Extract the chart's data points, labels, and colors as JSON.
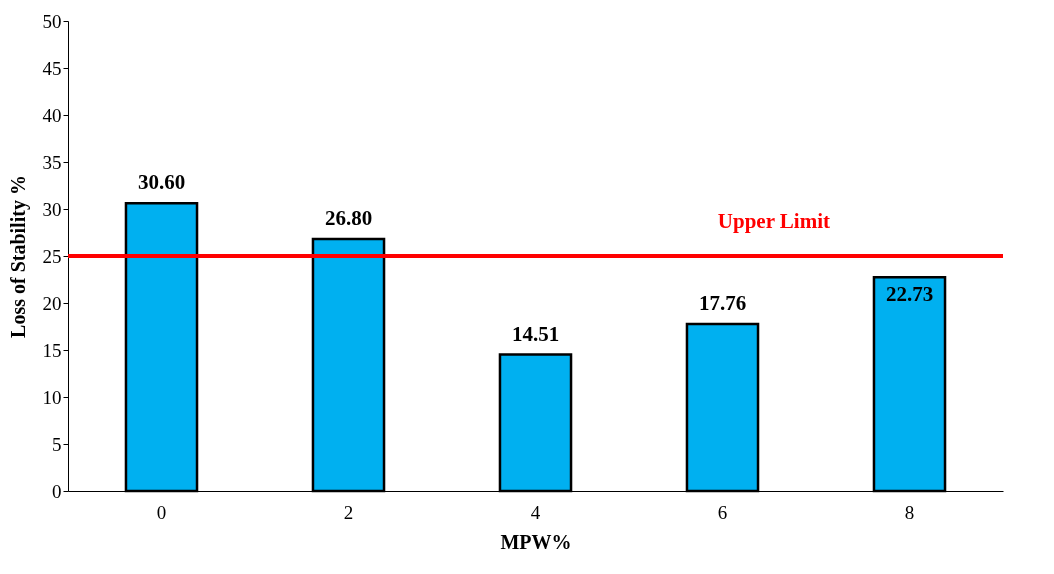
{
  "chart_data": {
    "type": "bar",
    "xlabel": "MPW%",
    "ylabel": "Loss of Stability %",
    "categories": [
      "0",
      "2",
      "4",
      "6",
      "8"
    ],
    "values": [
      30.6,
      26.8,
      14.51,
      17.76,
      22.73
    ],
    "value_labels": [
      "30.60",
      "26.80",
      "14.51",
      "17.76",
      "22.73"
    ],
    "color": "#00b0f0",
    "ylim": [
      0,
      50
    ],
    "yticks": [
      0,
      5,
      10,
      15,
      20,
      25,
      30,
      35,
      40,
      45,
      50
    ],
    "grid": false,
    "ref_lines": [
      {
        "axis": "y",
        "value": 25,
        "label": "Upper Limit",
        "color": "#ff0000"
      }
    ]
  }
}
